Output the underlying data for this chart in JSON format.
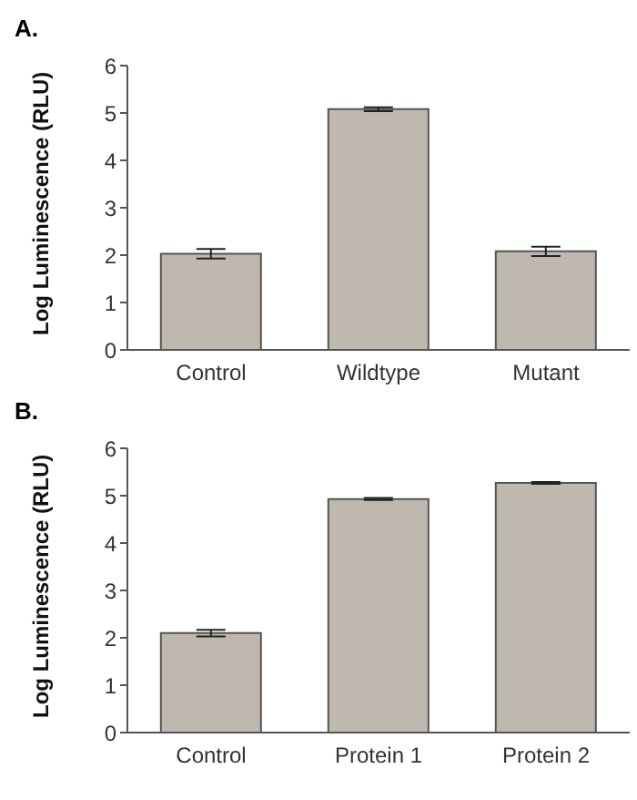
{
  "chart_data": [
    {
      "type": "bar",
      "title": "A.",
      "ylabel": "Log Luminescence (RLU)",
      "categories": [
        "Control",
        "Wildtype",
        "Mutant"
      ],
      "values": [
        2.03,
        5.08,
        2.08
      ],
      "errors": [
        0.1,
        0.04,
        0.1
      ],
      "color": "#bfb8ae",
      "ylim": [
        0,
        6
      ],
      "yticks": [
        0,
        1,
        2,
        3,
        4,
        5,
        6
      ]
    },
    {
      "type": "bar",
      "title": "B.",
      "ylabel": "Log Luminescence (RLU)",
      "categories": [
        "Control",
        "Protein 1",
        "Protein 2"
      ],
      "values": [
        2.1,
        4.93,
        5.27
      ],
      "errors": [
        0.07,
        0.02,
        0.02
      ],
      "color": "#bfb8ae",
      "ylim": [
        0,
        6
      ],
      "yticks": [
        0,
        1,
        2,
        3,
        4,
        5,
        6
      ]
    }
  ]
}
